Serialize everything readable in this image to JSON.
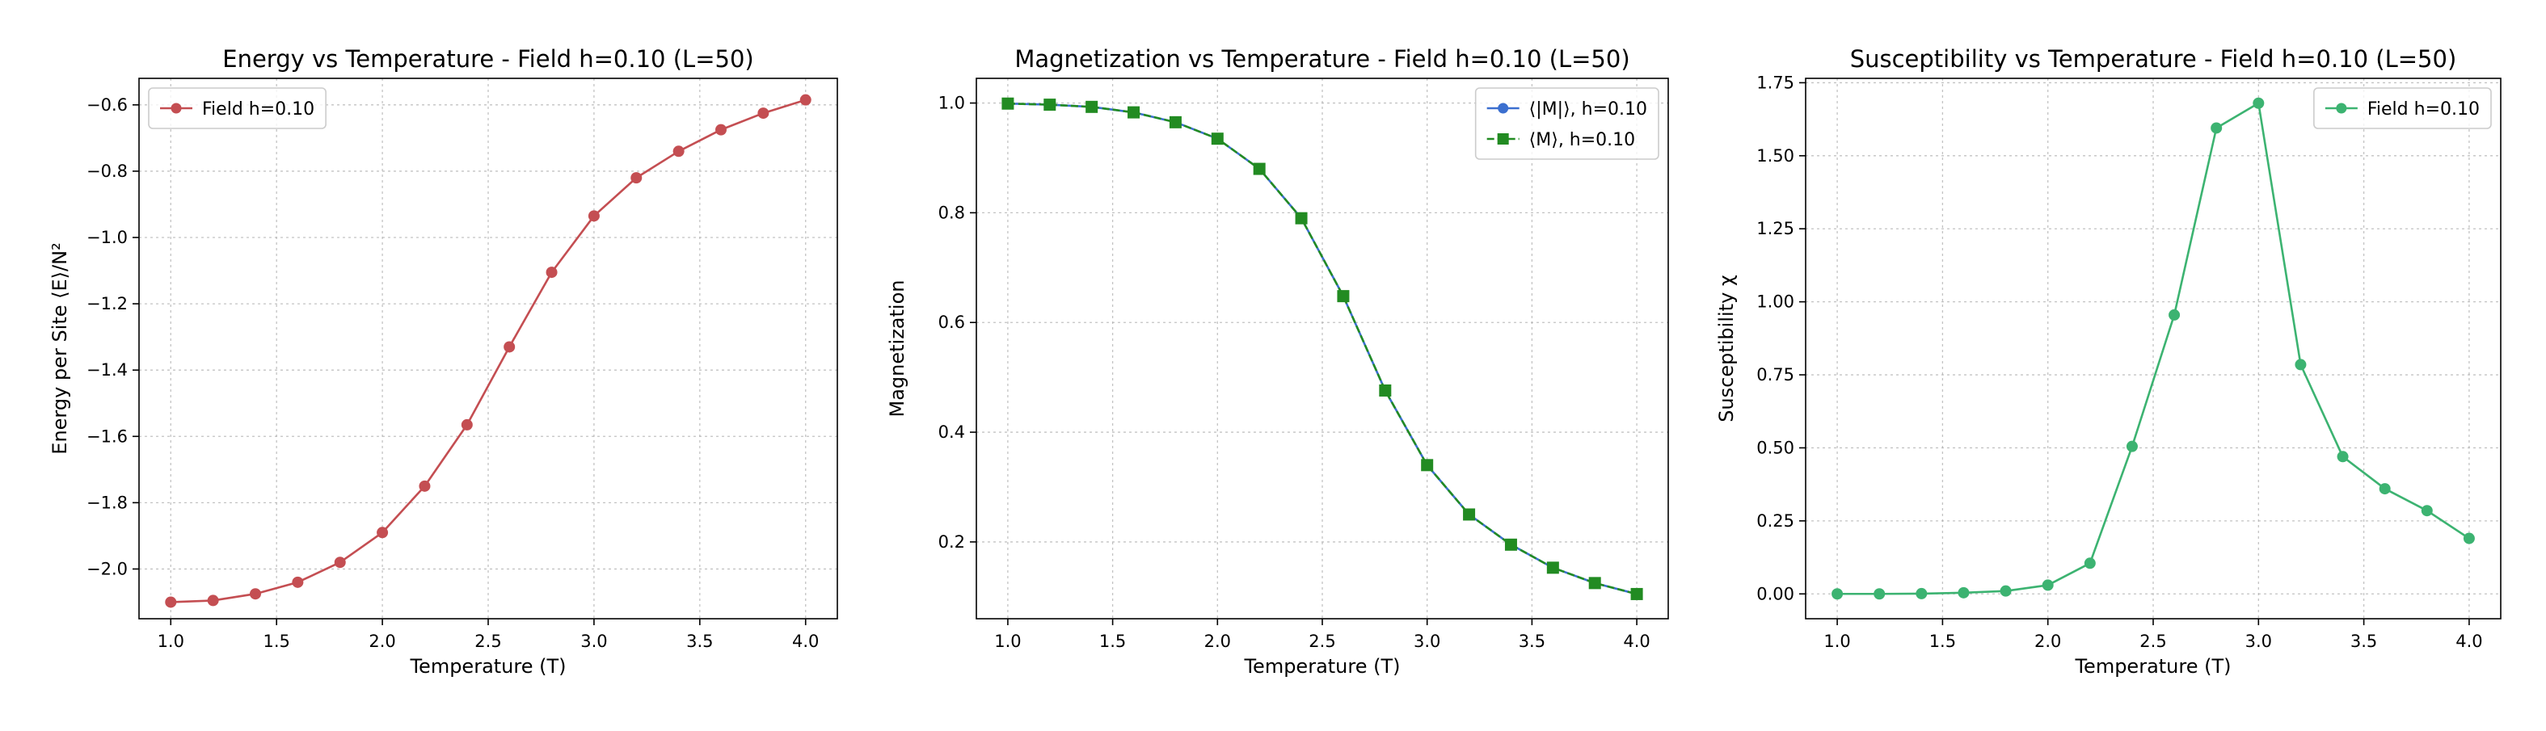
{
  "chart_data": [
    {
      "type": "line",
      "title": "Energy vs Temperature - Field h=0.10 (L=50)",
      "xlabel": "Temperature (T)",
      "ylabel": "Energy per Site ⟨E⟩/N²",
      "xlim": [
        0.85,
        4.15
      ],
      "ylim": [
        -2.15,
        -0.52
      ],
      "xticks": [
        1.0,
        1.5,
        2.0,
        2.5,
        3.0,
        3.5,
        4.0
      ],
      "xtick_labels": [
        "1.0",
        "1.5",
        "2.0",
        "2.5",
        "3.0",
        "3.5",
        "4.0"
      ],
      "yticks": [
        -2.0,
        -1.8,
        -1.6,
        -1.4,
        -1.2,
        -1.0,
        -0.8,
        -0.6
      ],
      "ytick_labels": [
        "−2.0",
        "−1.8",
        "−1.6",
        "−1.4",
        "−1.2",
        "−1.0",
        "−0.8",
        "−0.6"
      ],
      "grid": true,
      "legend": "upper-left",
      "x": [
        1.0,
        1.2,
        1.4,
        1.6,
        1.8,
        2.0,
        2.2,
        2.4,
        2.6,
        2.8,
        3.0,
        3.2,
        3.4,
        3.6,
        3.8,
        4.0
      ],
      "series": [
        {
          "name": "Field h=0.10",
          "color": "#c44e52",
          "marker": "circle",
          "linestyle": "solid",
          "values": [
            -2.1,
            -2.095,
            -2.075,
            -2.04,
            -1.98,
            -1.89,
            -1.75,
            -1.565,
            -1.33,
            -1.105,
            -0.935,
            -0.82,
            -0.74,
            -0.675,
            -0.625,
            -0.585
          ]
        }
      ]
    },
    {
      "type": "line",
      "title": "Magnetization vs Temperature - Field h=0.10 (L=50)",
      "xlabel": "Temperature (T)",
      "ylabel": "Magnetization",
      "xlim": [
        0.85,
        4.15
      ],
      "ylim": [
        0.06,
        1.045
      ],
      "xticks": [
        1.0,
        1.5,
        2.0,
        2.5,
        3.0,
        3.5,
        4.0
      ],
      "xtick_labels": [
        "1.0",
        "1.5",
        "2.0",
        "2.5",
        "3.0",
        "3.5",
        "4.0"
      ],
      "yticks": [
        0.2,
        0.4,
        0.6,
        0.8,
        1.0
      ],
      "ytick_labels": [
        "0.2",
        "0.4",
        "0.6",
        "0.8",
        "1.0"
      ],
      "grid": true,
      "legend": "upper-right",
      "x": [
        1.0,
        1.2,
        1.4,
        1.6,
        1.8,
        2.0,
        2.2,
        2.4,
        2.6,
        2.8,
        3.0,
        3.2,
        3.4,
        3.6,
        3.8,
        4.0
      ],
      "series": [
        {
          "name": "⟨|M|⟩, h=0.10",
          "color": "#3b6fcf",
          "marker": "circle",
          "linestyle": "solid",
          "values": [
            0.999,
            0.997,
            0.993,
            0.983,
            0.965,
            0.935,
            0.88,
            0.79,
            0.648,
            0.476,
            0.34,
            0.25,
            0.195,
            0.153,
            0.125,
            0.105
          ]
        },
        {
          "name": "⟨M⟩, h=0.10",
          "color": "#228b22",
          "marker": "square",
          "linestyle": "dashed",
          "values": [
            0.999,
            0.997,
            0.993,
            0.983,
            0.965,
            0.935,
            0.88,
            0.79,
            0.648,
            0.476,
            0.34,
            0.25,
            0.195,
            0.153,
            0.125,
            0.105
          ]
        }
      ]
    },
    {
      "type": "line",
      "title": "Susceptibility vs Temperature - Field h=0.10 (L=50)",
      "xlabel": "Temperature (T)",
      "ylabel": "Susceptibility χ",
      "xlim": [
        0.85,
        4.15
      ],
      "ylim": [
        -0.085,
        1.765
      ],
      "xticks": [
        1.0,
        1.5,
        2.0,
        2.5,
        3.0,
        3.5,
        4.0
      ],
      "xtick_labels": [
        "1.0",
        "1.5",
        "2.0",
        "2.5",
        "3.0",
        "3.5",
        "4.0"
      ],
      "yticks": [
        0.0,
        0.25,
        0.5,
        0.75,
        1.0,
        1.25,
        1.5,
        1.75
      ],
      "ytick_labels": [
        "0.00",
        "0.25",
        "0.50",
        "0.75",
        "1.00",
        "1.25",
        "1.50",
        "1.75"
      ],
      "grid": true,
      "legend": "upper-right",
      "x": [
        1.0,
        1.2,
        1.4,
        1.6,
        1.8,
        2.0,
        2.2,
        2.4,
        2.6,
        2.8,
        3.0,
        3.2,
        3.4,
        3.6,
        3.8,
        4.0
      ],
      "series": [
        {
          "name": "Field h=0.10",
          "color": "#3cb371",
          "marker": "circle",
          "linestyle": "solid",
          "values": [
            0.0,
            0.0,
            0.001,
            0.004,
            0.01,
            0.03,
            0.105,
            0.505,
            0.955,
            1.595,
            1.68,
            0.785,
            0.47,
            0.36,
            0.285,
            0.19
          ]
        }
      ]
    }
  ]
}
